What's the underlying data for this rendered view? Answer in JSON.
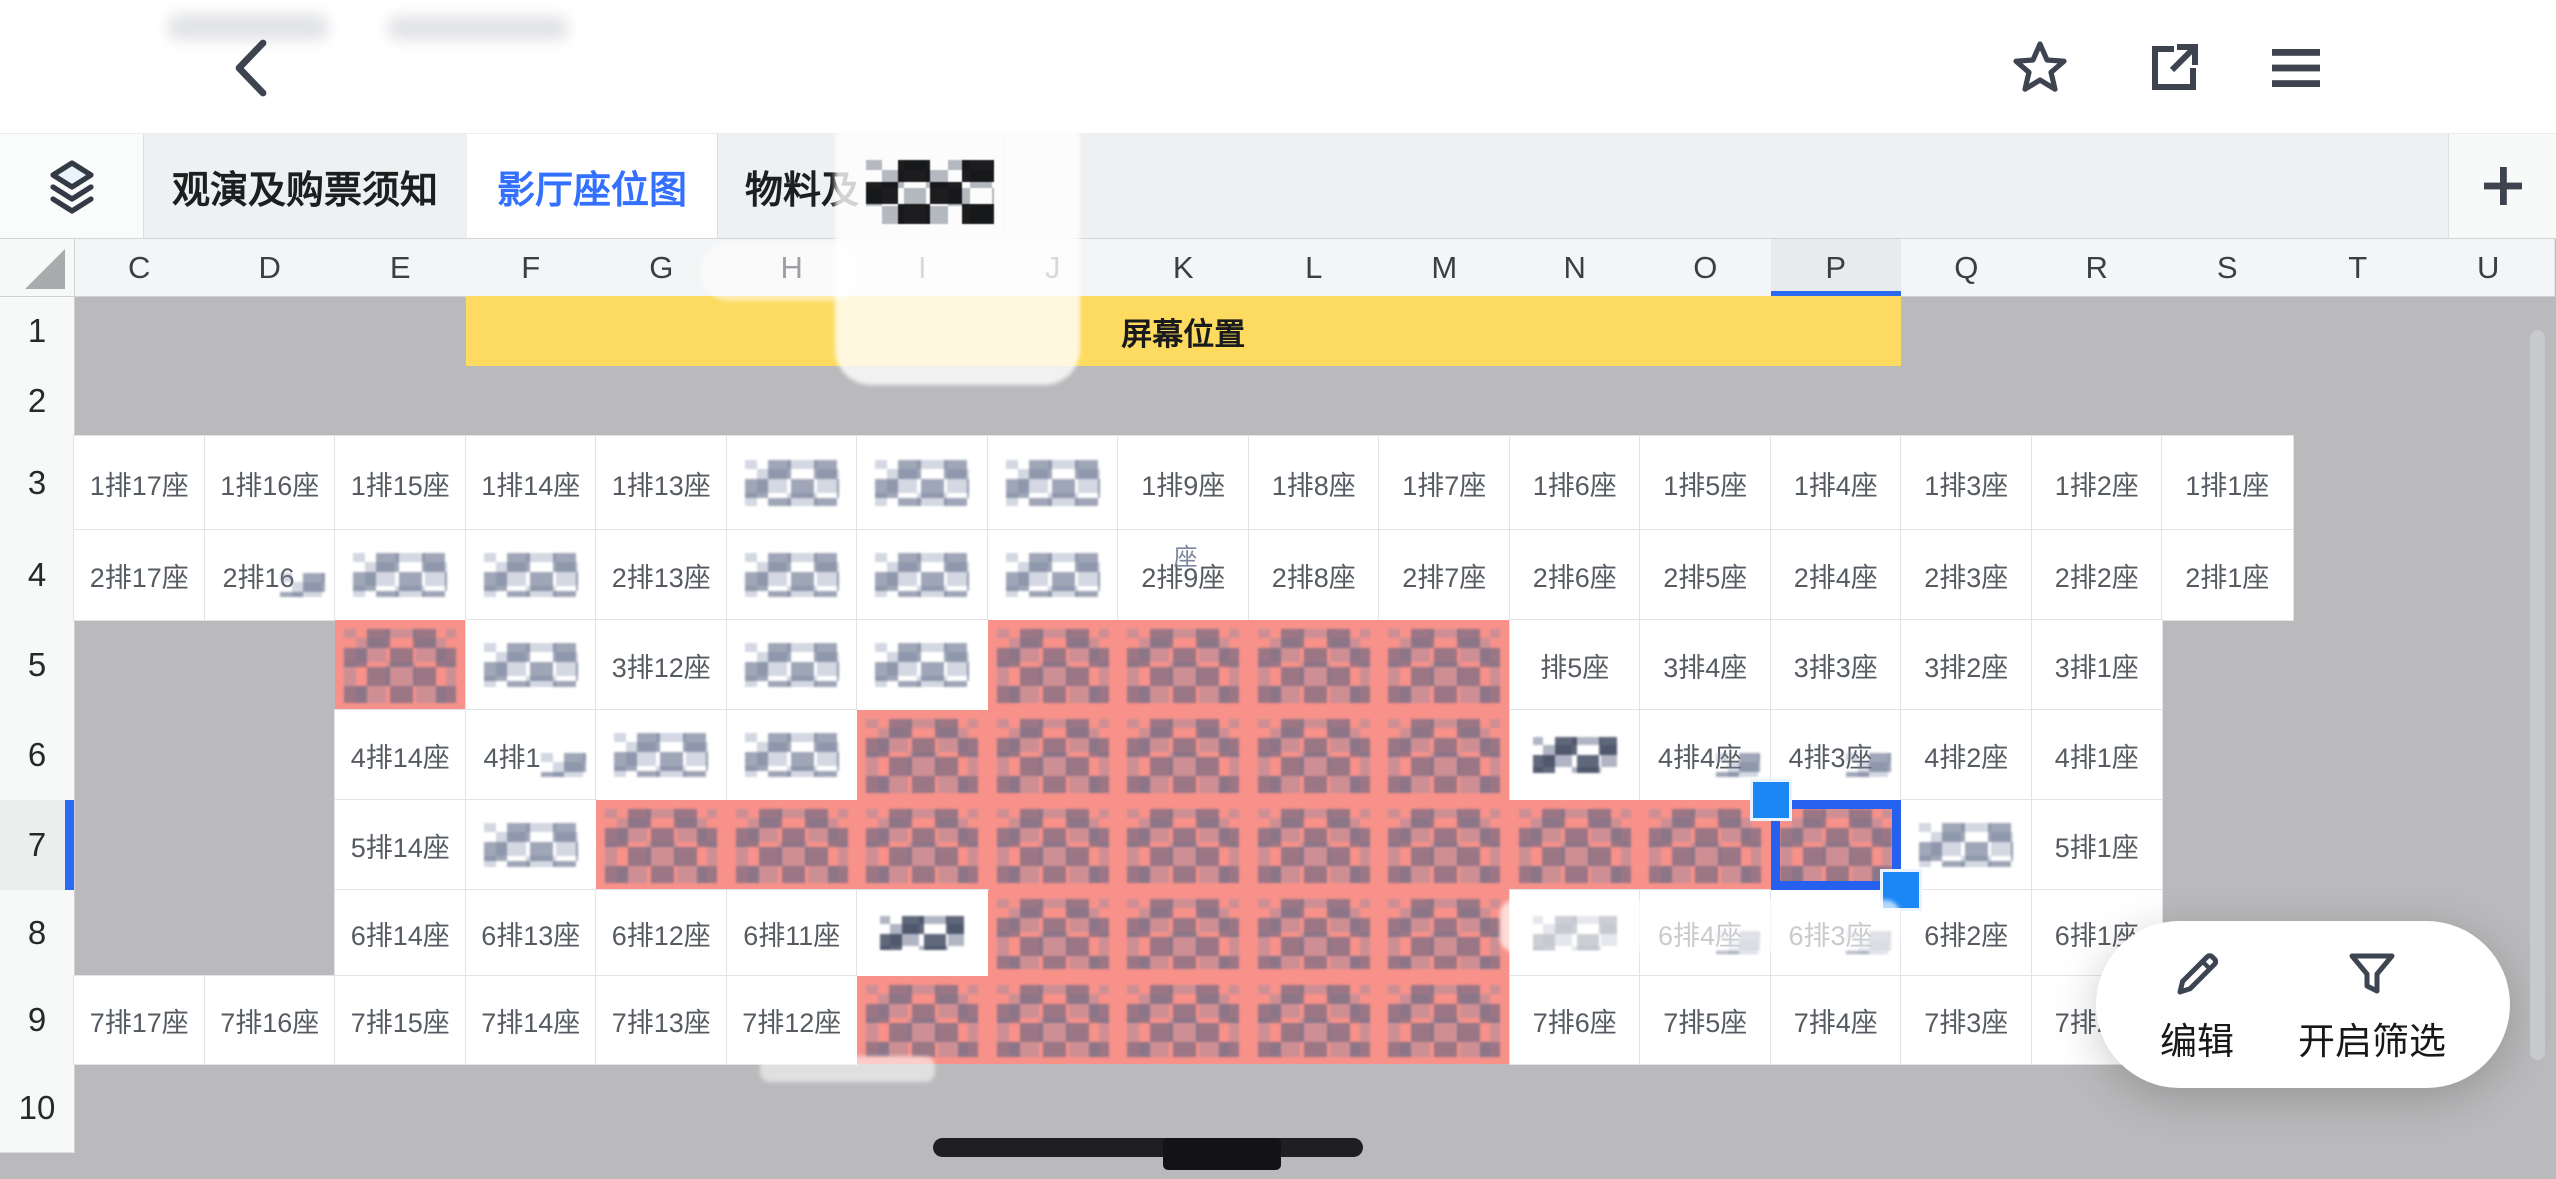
{
  "top_bar": {
    "back_icon": "chevron-left",
    "favorite_icon": "star-outline",
    "share_icon": "open-in-new",
    "menu_icon": "hamburger"
  },
  "tab_bar": {
    "sheet_switcher_icon": "layers-stack",
    "tabs": [
      {
        "label": "观演及购票须知",
        "selected": false
      },
      {
        "label": "影厅座位图",
        "selected": true
      },
      {
        "label": "物料及",
        "selected": false,
        "redacted_suffix": true
      }
    ],
    "add_sheet_label": "+"
  },
  "sheet": {
    "columns": [
      "C",
      "D",
      "E",
      "F",
      "G",
      "H",
      "I",
      "J",
      "K",
      "L",
      "M",
      "N",
      "O",
      "P",
      "Q",
      "R",
      "S",
      "T",
      "U"
    ],
    "selected_column": "P",
    "rows": [
      "1",
      "2",
      "3",
      "4",
      "5",
      "6",
      "7",
      "8",
      "9",
      "10"
    ],
    "selected_row": "7",
    "screen_banner": {
      "text": "屏幕位置",
      "row": "1",
      "col_start": "F",
      "col_end": "P",
      "color": "#fcdb60"
    },
    "selection": {
      "col": "P",
      "row": "7"
    },
    "redacted_artifact": "座",
    "cells": [
      {
        "c": "C",
        "r": 3,
        "t": "seat",
        "v": "1排17座"
      },
      {
        "c": "D",
        "r": 3,
        "t": "seat",
        "v": "1排16座"
      },
      {
        "c": "E",
        "r": 3,
        "t": "seat",
        "v": "1排15座"
      },
      {
        "c": "F",
        "r": 3,
        "t": "seat",
        "v": "1排14座"
      },
      {
        "c": "G",
        "r": 3,
        "t": "seat",
        "v": "1排13座"
      },
      {
        "c": "H",
        "r": 3,
        "t": "redacted"
      },
      {
        "c": "I",
        "r": 3,
        "t": "redacted"
      },
      {
        "c": "J",
        "r": 3,
        "t": "redacted"
      },
      {
        "c": "K",
        "r": 3,
        "t": "seat",
        "v": "1排9座"
      },
      {
        "c": "L",
        "r": 3,
        "t": "seat",
        "v": "1排8座"
      },
      {
        "c": "M",
        "r": 3,
        "t": "seat",
        "v": "1排7座"
      },
      {
        "c": "N",
        "r": 3,
        "t": "seat",
        "v": "1排6座"
      },
      {
        "c": "O",
        "r": 3,
        "t": "seat",
        "v": "1排5座"
      },
      {
        "c": "P",
        "r": 3,
        "t": "seat",
        "v": "1排4座"
      },
      {
        "c": "Q",
        "r": 3,
        "t": "seat",
        "v": "1排3座"
      },
      {
        "c": "R",
        "r": 3,
        "t": "seat",
        "v": "1排2座"
      },
      {
        "c": "S",
        "r": 3,
        "t": "seat",
        "v": "1排1座"
      },
      {
        "c": "C",
        "r": 4,
        "t": "seat",
        "v": "2排17座"
      },
      {
        "c": "D",
        "r": 4,
        "t": "partial",
        "v": "2排16"
      },
      {
        "c": "E",
        "r": 4,
        "t": "redacted"
      },
      {
        "c": "F",
        "r": 4,
        "t": "redacted"
      },
      {
        "c": "G",
        "r": 4,
        "t": "seat",
        "v": "2排13座"
      },
      {
        "c": "H",
        "r": 4,
        "t": "redacted"
      },
      {
        "c": "I",
        "r": 4,
        "t": "redacted"
      },
      {
        "c": "J",
        "r": 4,
        "t": "redacted"
      },
      {
        "c": "K",
        "r": 4,
        "t": "seat",
        "v": "2排9座"
      },
      {
        "c": "L",
        "r": 4,
        "t": "seat",
        "v": "2排8座"
      },
      {
        "c": "M",
        "r": 4,
        "t": "seat",
        "v": "2排7座"
      },
      {
        "c": "N",
        "r": 4,
        "t": "seat",
        "v": "2排6座"
      },
      {
        "c": "O",
        "r": 4,
        "t": "seat",
        "v": "2排5座"
      },
      {
        "c": "P",
        "r": 4,
        "t": "seat",
        "v": "2排4座"
      },
      {
        "c": "Q",
        "r": 4,
        "t": "seat",
        "v": "2排3座"
      },
      {
        "c": "R",
        "r": 4,
        "t": "seat",
        "v": "2排2座"
      },
      {
        "c": "S",
        "r": 4,
        "t": "seat",
        "v": "2排1座"
      },
      {
        "c": "E",
        "r": 5,
        "t": "sold"
      },
      {
        "c": "F",
        "r": 5,
        "t": "redacted"
      },
      {
        "c": "G",
        "r": 5,
        "t": "seat",
        "v": "3排12座"
      },
      {
        "c": "H",
        "r": 5,
        "t": "redacted"
      },
      {
        "c": "I",
        "r": 5,
        "t": "redacted"
      },
      {
        "c": "J",
        "r": 5,
        "t": "sold"
      },
      {
        "c": "K",
        "r": 5,
        "t": "sold"
      },
      {
        "c": "L",
        "r": 5,
        "t": "sold"
      },
      {
        "c": "M",
        "r": 5,
        "t": "sold"
      },
      {
        "c": "N",
        "r": 5,
        "t": "seat",
        "v": "排5座"
      },
      {
        "c": "O",
        "r": 5,
        "t": "seat",
        "v": "3排4座"
      },
      {
        "c": "P",
        "r": 5,
        "t": "seat",
        "v": "3排3座"
      },
      {
        "c": "Q",
        "r": 5,
        "t": "seat",
        "v": "3排2座"
      },
      {
        "c": "R",
        "r": 5,
        "t": "seat",
        "v": "3排1座"
      },
      {
        "c": "E",
        "r": 6,
        "t": "seat",
        "v": "4排14座"
      },
      {
        "c": "F",
        "r": 6,
        "t": "partial",
        "v": "4排1"
      },
      {
        "c": "G",
        "r": 6,
        "t": "redacted"
      },
      {
        "c": "H",
        "r": 6,
        "t": "redacted"
      },
      {
        "c": "I",
        "r": 6,
        "t": "sold"
      },
      {
        "c": "J",
        "r": 6,
        "t": "sold"
      },
      {
        "c": "K",
        "r": 6,
        "t": "sold"
      },
      {
        "c": "L",
        "r": 6,
        "t": "sold"
      },
      {
        "c": "M",
        "r": 6,
        "t": "sold"
      },
      {
        "c": "N",
        "r": 6,
        "t": "redacted-dark"
      },
      {
        "c": "O",
        "r": 6,
        "t": "partial",
        "v": "4排4座"
      },
      {
        "c": "P",
        "r": 6,
        "t": "partial",
        "v": "4排3座"
      },
      {
        "c": "Q",
        "r": 6,
        "t": "seat",
        "v": "4排2座"
      },
      {
        "c": "R",
        "r": 6,
        "t": "seat",
        "v": "4排1座"
      },
      {
        "c": "E",
        "r": 7,
        "t": "seat",
        "v": "5排14座"
      },
      {
        "c": "F",
        "r": 7,
        "t": "redacted"
      },
      {
        "c": "G",
        "r": 7,
        "t": "sold"
      },
      {
        "c": "H",
        "r": 7,
        "t": "sold"
      },
      {
        "c": "I",
        "r": 7,
        "t": "sold"
      },
      {
        "c": "J",
        "r": 7,
        "t": "sold"
      },
      {
        "c": "K",
        "r": 7,
        "t": "sold"
      },
      {
        "c": "L",
        "r": 7,
        "t": "sold"
      },
      {
        "c": "M",
        "r": 7,
        "t": "sold"
      },
      {
        "c": "N",
        "r": 7,
        "t": "sold"
      },
      {
        "c": "O",
        "r": 7,
        "t": "sold"
      },
      {
        "c": "P",
        "r": 7,
        "t": "sold"
      },
      {
        "c": "Q",
        "r": 7,
        "t": "redacted"
      },
      {
        "c": "R",
        "r": 7,
        "t": "seat",
        "v": "5排1座"
      },
      {
        "c": "E",
        "r": 8,
        "t": "seat",
        "v": "6排14座"
      },
      {
        "c": "F",
        "r": 8,
        "t": "seat",
        "v": "6排13座"
      },
      {
        "c": "G",
        "r": 8,
        "t": "seat",
        "v": "6排12座"
      },
      {
        "c": "H",
        "r": 8,
        "t": "seat",
        "v": "6排11座"
      },
      {
        "c": "I",
        "r": 8,
        "t": "redacted-dark"
      },
      {
        "c": "J",
        "r": 8,
        "t": "sold"
      },
      {
        "c": "K",
        "r": 8,
        "t": "sold"
      },
      {
        "c": "L",
        "r": 8,
        "t": "sold"
      },
      {
        "c": "M",
        "r": 8,
        "t": "sold"
      },
      {
        "c": "N",
        "r": 8,
        "t": "redacted-dark"
      },
      {
        "c": "O",
        "r": 8,
        "t": "partial",
        "v": "6排4座"
      },
      {
        "c": "P",
        "r": 8,
        "t": "partial",
        "v": "6排3座"
      },
      {
        "c": "Q",
        "r": 8,
        "t": "seat",
        "v": "6排2座"
      },
      {
        "c": "R",
        "r": 8,
        "t": "seat",
        "v": "6排1座"
      },
      {
        "c": "C",
        "r": 9,
        "t": "seat",
        "v": "7排17座"
      },
      {
        "c": "D",
        "r": 9,
        "t": "seat",
        "v": "7排16座"
      },
      {
        "c": "E",
        "r": 9,
        "t": "seat",
        "v": "7排15座"
      },
      {
        "c": "F",
        "r": 9,
        "t": "seat",
        "v": "7排14座"
      },
      {
        "c": "G",
        "r": 9,
        "t": "seat",
        "v": "7排13座"
      },
      {
        "c": "H",
        "r": 9,
        "t": "seat",
        "v": "7排12座"
      },
      {
        "c": "I",
        "r": 9,
        "t": "sold"
      },
      {
        "c": "J",
        "r": 9,
        "t": "sold"
      },
      {
        "c": "K",
        "r": 9,
        "t": "sold"
      },
      {
        "c": "L",
        "r": 9,
        "t": "sold"
      },
      {
        "c": "M",
        "r": 9,
        "t": "sold"
      },
      {
        "c": "N",
        "r": 9,
        "t": "seat",
        "v": "7排6座"
      },
      {
        "c": "O",
        "r": 9,
        "t": "seat",
        "v": "7排5座"
      },
      {
        "c": "P",
        "r": 9,
        "t": "seat",
        "v": "7排4座"
      },
      {
        "c": "Q",
        "r": 9,
        "t": "seat",
        "v": "7排3座"
      },
      {
        "c": "R",
        "r": 9,
        "t": "seat",
        "v": "7排2座"
      }
    ]
  },
  "action_pill": {
    "edit_label": "编辑",
    "edit_icon": "pencil",
    "filter_label": "开启筛选",
    "filter_icon": "funnel"
  },
  "colors": {
    "accent_blue": "#3370ff",
    "selection_blue": "#2560ee",
    "handle_blue": "#1b87f5",
    "sold_red": "#f7918a",
    "banner_yellow": "#fcdb60",
    "canvas_gray": "#bababc"
  }
}
